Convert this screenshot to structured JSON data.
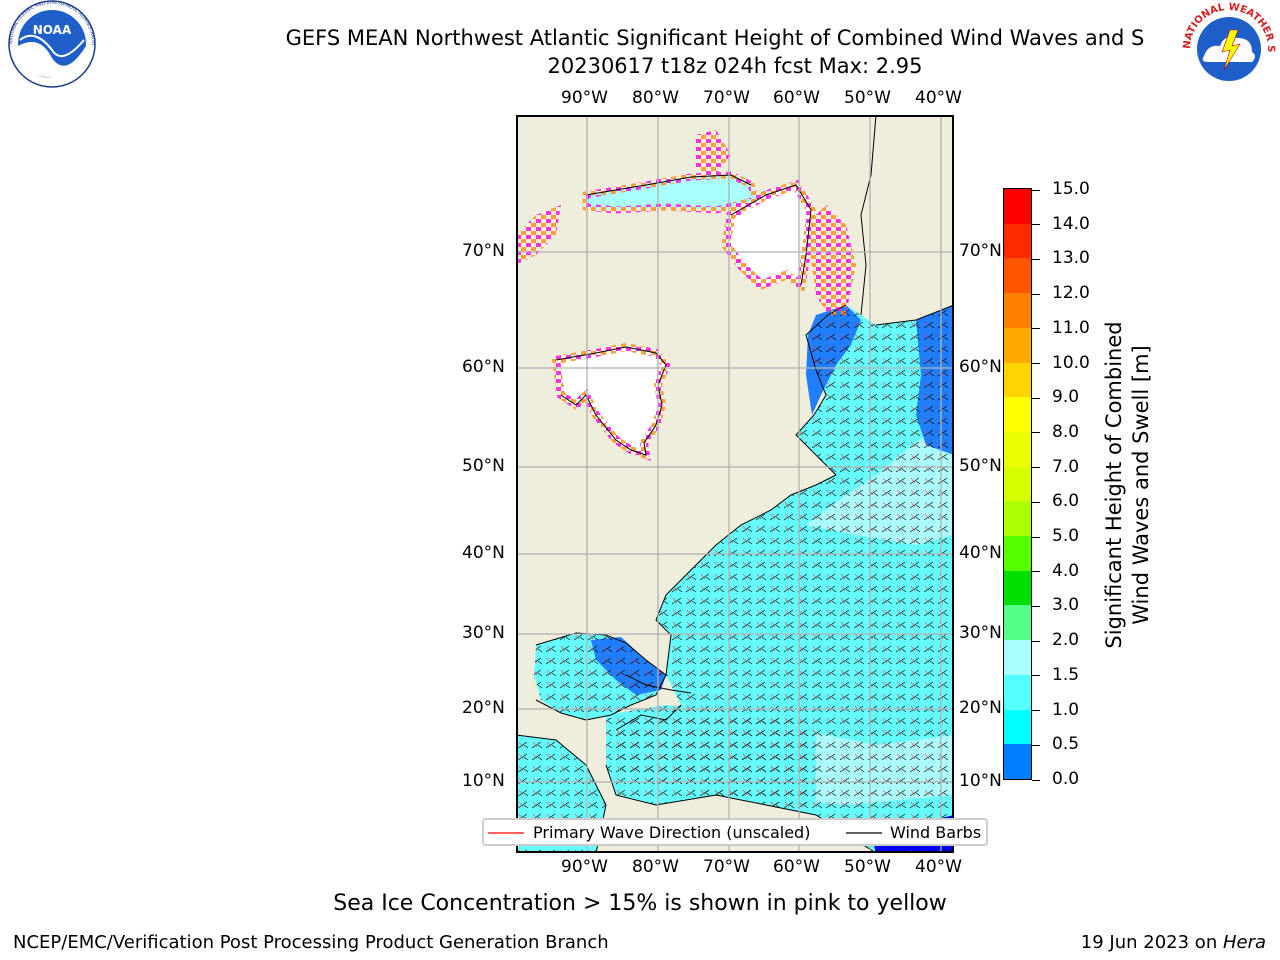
{
  "title": {
    "line1": "GEFS MEAN Northwest Atlantic Significant Height of Combined Wind Waves and S",
    "line2": "20230617 t18z 024h fcst   Max: 2.95"
  },
  "map": {
    "lon_labels_top": [
      "90°W",
      "80°W",
      "70°W",
      "60°W",
      "50°W",
      "40°W"
    ],
    "lon_labels_bottom": [
      "90°W",
      "80°W",
      "70°W",
      "60°W",
      "50°W",
      "40°W"
    ],
    "lat_labels": [
      "70°N",
      "60°N",
      "50°N",
      "40°N",
      "30°N",
      "20°N",
      "10°N"
    ],
    "colors": {
      "land": "#efeddc",
      "ocean_main": "#66ffff",
      "ocean_light": "#aaffff",
      "ocean_deep": "#1f7fff",
      "ocean_deepest": "#0000ff",
      "ice_pink": "#ff33dd",
      "ice_orange": "#ffa040",
      "grid": "#b0b0b0"
    }
  },
  "legend": {
    "wave_label": "Primary Wave Direction (unscaled)",
    "barb_label": "Wind Barbs"
  },
  "colorbar": {
    "title_line1": "Significant Height of Combined",
    "title_line2": "Wind Waves and Swell [m]",
    "ticks": [
      "15.0",
      "14.0",
      "13.0",
      "12.0",
      "11.0",
      "10.0",
      "9.0",
      "8.0",
      "7.0",
      "6.0",
      "5.0",
      "4.0",
      "3.0",
      "2.0",
      "1.5",
      "1.0",
      "0.5",
      "0.0"
    ],
    "colors": [
      "#ff0000",
      "#ff2a00",
      "#ff5500",
      "#ff8000",
      "#ffaa00",
      "#ffd400",
      "#ffff00",
      "#eaff00",
      "#d5ff00",
      "#aaff00",
      "#55ff00",
      "#00e000",
      "#55ff88",
      "#aaffff",
      "#55ffff",
      "#00ffff",
      "#0080ff",
      "#0000ff"
    ]
  },
  "logos": {
    "noaa_text": "NOAA",
    "noaa_ring": "NATIONAL OCEANIC AND ATMOSPHERIC ADMINISTRATION · U.S. DEPARTMENT OF COMMERCE",
    "nws_ring": "NATIONAL WEATHER SERVICE"
  },
  "caption": "Sea Ice Concentration > 15% is shown in pink to yellow",
  "footer": {
    "left": "NCEP/EMC/Verification Post Processing Product Generation Branch",
    "right_date": "19 Jun 2023 on ",
    "right_host": "Hera"
  }
}
